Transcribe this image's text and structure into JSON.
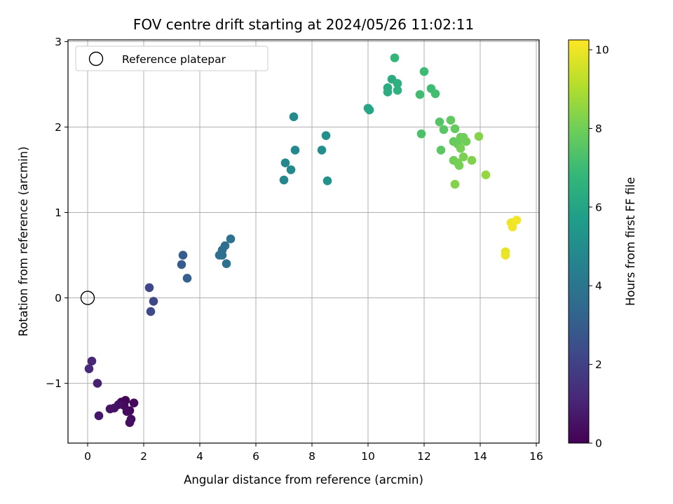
{
  "chart_data": {
    "type": "scatter",
    "title": "FOV centre drift starting at 2024/05/26 11:02:11",
    "xlabel": "Angular distance from reference (arcmin)",
    "ylabel": "Rotation from reference (arcmin)",
    "xlim": [
      -0.7,
      16.1
    ],
    "ylim": [
      -1.7,
      3.02
    ],
    "x_ticks": [
      0,
      2,
      4,
      6,
      8,
      10,
      12,
      14,
      16
    ],
    "y_ticks": [
      -1,
      0,
      1,
      2,
      3
    ],
    "y_tick_labels": [
      "−1",
      "0",
      "1",
      "2",
      "3"
    ],
    "grid": true,
    "legend": {
      "placement": "top-left",
      "entries": [
        "Reference platepar"
      ]
    },
    "reference_point": {
      "x": 0,
      "y": 0,
      "label": "Reference platepar"
    },
    "colorbar": {
      "label": "Hours from first FF file",
      "colormap": "viridis",
      "range": [
        0,
        10.25
      ],
      "ticks": [
        0,
        2,
        4,
        6,
        8,
        10
      ]
    },
    "points": [
      {
        "x": 1.2,
        "y": -1.22,
        "c": 0.05
      },
      {
        "x": 1.35,
        "y": -1.2,
        "c": 0.1
      },
      {
        "x": 1.5,
        "y": -1.32,
        "c": 0.15
      },
      {
        "x": 1.65,
        "y": -1.23,
        "c": 0.2
      },
      {
        "x": 1.3,
        "y": -1.26,
        "c": 0.25
      },
      {
        "x": 1.4,
        "y": -1.33,
        "c": 0.3
      },
      {
        "x": 1.55,
        "y": -1.42,
        "c": 0.35
      },
      {
        "x": 1.5,
        "y": -1.46,
        "c": 0.4
      },
      {
        "x": 1.1,
        "y": -1.25,
        "c": 0.45
      },
      {
        "x": 0.95,
        "y": -1.29,
        "c": 0.5
      },
      {
        "x": 0.8,
        "y": -1.3,
        "c": 0.55
      },
      {
        "x": 0.4,
        "y": -1.38,
        "c": 0.65
      },
      {
        "x": 0.35,
        "y": -1.0,
        "c": 0.9
      },
      {
        "x": 0.15,
        "y": -0.74,
        "c": 1.1
      },
      {
        "x": 0.05,
        "y": -0.83,
        "c": 1.2
      },
      {
        "x": 2.2,
        "y": 0.12,
        "c": 2.2
      },
      {
        "x": 2.35,
        "y": -0.04,
        "c": 2.25
      },
      {
        "x": 2.25,
        "y": -0.16,
        "c": 2.3
      },
      {
        "x": 3.4,
        "y": 0.5,
        "c": 3.0
      },
      {
        "x": 3.35,
        "y": 0.39,
        "c": 3.05
      },
      {
        "x": 3.55,
        "y": 0.23,
        "c": 3.1
      },
      {
        "x": 4.7,
        "y": 0.5,
        "c": 3.7
      },
      {
        "x": 4.8,
        "y": 0.56,
        "c": 3.72
      },
      {
        "x": 4.9,
        "y": 0.61,
        "c": 3.76
      },
      {
        "x": 4.95,
        "y": 0.4,
        "c": 3.8
      },
      {
        "x": 5.1,
        "y": 0.69,
        "c": 3.85
      },
      {
        "x": 4.8,
        "y": 0.5,
        "c": 3.78
      },
      {
        "x": 7.0,
        "y": 1.38,
        "c": 4.7
      },
      {
        "x": 7.05,
        "y": 1.58,
        "c": 4.75
      },
      {
        "x": 7.25,
        "y": 1.5,
        "c": 4.8
      },
      {
        "x": 7.4,
        "y": 1.73,
        "c": 4.85
      },
      {
        "x": 7.35,
        "y": 2.12,
        "c": 4.95
      },
      {
        "x": 8.35,
        "y": 1.73,
        "c": 5.05
      },
      {
        "x": 8.5,
        "y": 1.9,
        "c": 5.15
      },
      {
        "x": 8.55,
        "y": 1.37,
        "c": 5.2
      },
      {
        "x": 10.0,
        "y": 2.22,
        "c": 6.0
      },
      {
        "x": 10.05,
        "y": 2.2,
        "c": 6.05
      },
      {
        "x": 10.7,
        "y": 2.46,
        "c": 6.3
      },
      {
        "x": 10.7,
        "y": 2.41,
        "c": 6.35
      },
      {
        "x": 10.85,
        "y": 2.56,
        "c": 6.4
      },
      {
        "x": 11.05,
        "y": 2.51,
        "c": 6.5
      },
      {
        "x": 11.05,
        "y": 2.43,
        "c": 6.55
      },
      {
        "x": 10.95,
        "y": 2.81,
        "c": 6.8
      },
      {
        "x": 12.0,
        "y": 2.65,
        "c": 7.0
      },
      {
        "x": 12.25,
        "y": 2.45,
        "c": 7.05
      },
      {
        "x": 12.4,
        "y": 2.39,
        "c": 7.15
      },
      {
        "x": 11.85,
        "y": 2.38,
        "c": 7.1
      },
      {
        "x": 11.9,
        "y": 1.92,
        "c": 7.3
      },
      {
        "x": 12.55,
        "y": 2.06,
        "c": 7.5
      },
      {
        "x": 12.7,
        "y": 1.97,
        "c": 7.55
      },
      {
        "x": 12.6,
        "y": 1.73,
        "c": 7.6
      },
      {
        "x": 12.95,
        "y": 2.08,
        "c": 7.7
      },
      {
        "x": 13.1,
        "y": 1.98,
        "c": 7.75
      },
      {
        "x": 13.05,
        "y": 1.83,
        "c": 7.8
      },
      {
        "x": 13.2,
        "y": 1.8,
        "c": 7.85
      },
      {
        "x": 13.3,
        "y": 1.88,
        "c": 7.9
      },
      {
        "x": 13.4,
        "y": 1.88,
        "c": 7.95
      },
      {
        "x": 13.5,
        "y": 1.83,
        "c": 8.0
      },
      {
        "x": 13.05,
        "y": 1.61,
        "c": 8.0
      },
      {
        "x": 13.2,
        "y": 1.58,
        "c": 8.05
      },
      {
        "x": 13.25,
        "y": 1.55,
        "c": 8.1
      },
      {
        "x": 13.4,
        "y": 1.65,
        "c": 8.15
      },
      {
        "x": 13.3,
        "y": 1.75,
        "c": 8.1
      },
      {
        "x": 13.7,
        "y": 1.61,
        "c": 8.25
      },
      {
        "x": 13.95,
        "y": 1.89,
        "c": 8.35
      },
      {
        "x": 13.1,
        "y": 1.33,
        "c": 8.3
      },
      {
        "x": 14.2,
        "y": 1.44,
        "c": 8.6
      },
      {
        "x": 14.9,
        "y": 0.54,
        "c": 9.9
      },
      {
        "x": 14.9,
        "y": 0.5,
        "c": 9.95
      },
      {
        "x": 15.1,
        "y": 0.88,
        "c": 10.0
      },
      {
        "x": 15.15,
        "y": 0.83,
        "c": 10.05
      },
      {
        "x": 15.3,
        "y": 0.91,
        "c": 10.1
      }
    ]
  }
}
